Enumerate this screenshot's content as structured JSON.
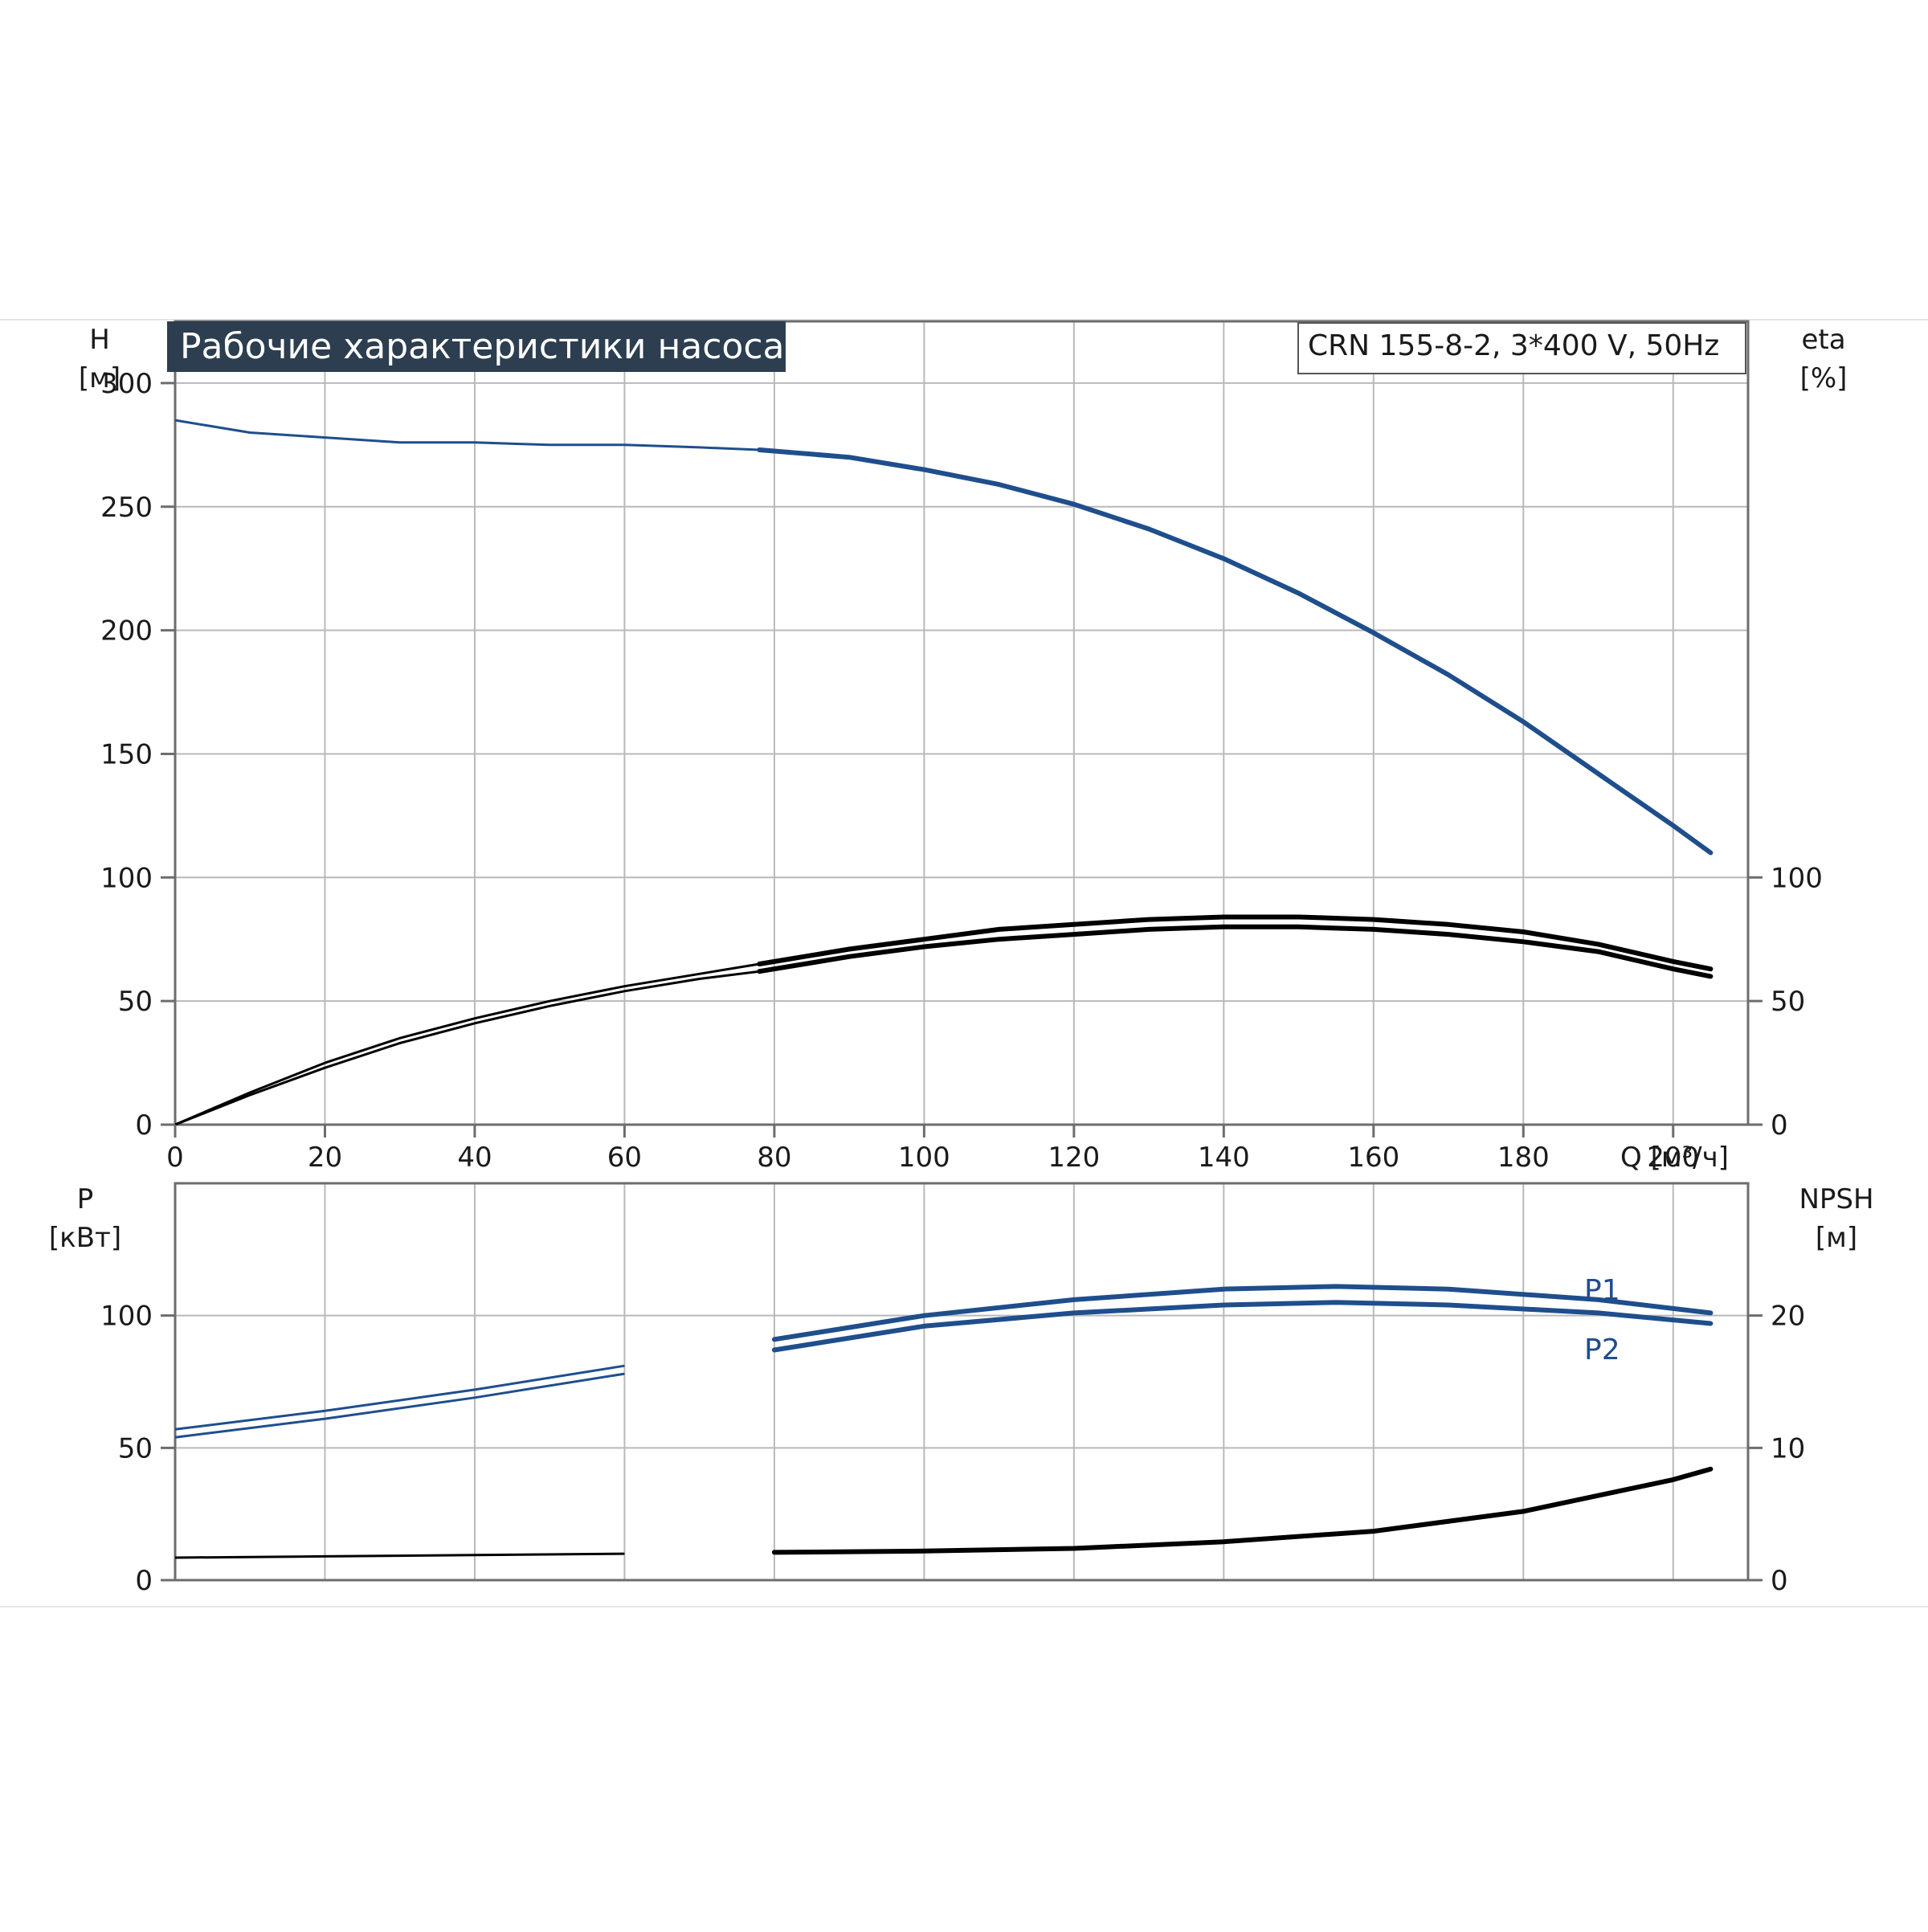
{
  "chart_data": [
    {
      "type": "line",
      "title": "Рабочие характеристики насоса",
      "subtitle": "CRN 155-8-2, 3*400 V, 50Hz",
      "x_axis": {
        "label": "Q [м³/ч]",
        "range": [
          0,
          210
        ],
        "ticks": [
          0,
          20,
          40,
          60,
          80,
          100,
          120,
          140,
          160,
          180,
          200
        ],
        "grid": true
      },
      "y_left": {
        "label": "H",
        "unit": "[м]",
        "range": [
          0,
          325
        ],
        "ticks": [
          0,
          50,
          100,
          150,
          200,
          250,
          300
        ]
      },
      "y_right": {
        "label": "eta",
        "unit": "[%]",
        "range": [
          0,
          325
        ],
        "ticks": [
          0,
          50,
          100
        ]
      },
      "grid": true,
      "series": [
        {
          "name": "",
          "axis": "left",
          "color": "#1f4e8c",
          "x": [
            0,
            10,
            20,
            30,
            40,
            50,
            60,
            70,
            78,
            90,
            100,
            110,
            120,
            130,
            140,
            150,
            160,
            170,
            180,
            190,
            200,
            205
          ],
          "y": [
            285,
            280,
            278,
            276,
            276,
            275,
            275,
            274,
            273,
            270,
            265,
            259,
            251,
            241,
            229,
            215,
            199,
            182,
            163,
            142,
            121,
            110
          ]
        },
        {
          "name": "",
          "axis": "right",
          "color": "#000000",
          "x": [
            0,
            10,
            20,
            30,
            40,
            50,
            60,
            70,
            78,
            90,
            100,
            110,
            120,
            130,
            140,
            150,
            160,
            170,
            180,
            190,
            200,
            205
          ],
          "y": [
            0,
            13,
            25,
            35,
            43,
            50,
            56,
            61,
            65,
            71,
            75,
            79,
            81,
            83,
            84,
            84,
            83,
            81,
            78,
            73,
            66,
            63
          ]
        },
        {
          "name": "",
          "axis": "right",
          "color": "#000000",
          "x": [
            0,
            10,
            20,
            30,
            40,
            50,
            60,
            70,
            78,
            90,
            100,
            110,
            120,
            130,
            140,
            150,
            160,
            170,
            180,
            190,
            200,
            205
          ],
          "y": [
            0,
            12,
            23,
            33,
            41,
            48,
            54,
            59,
            62,
            68,
            72,
            75,
            77,
            79,
            80,
            80,
            79,
            77,
            74,
            70,
            63,
            60
          ]
        }
      ]
    },
    {
      "type": "line",
      "x_axis": {
        "label": "Q [м³/ч]",
        "range": [
          0,
          210
        ],
        "ticks": [
          0,
          20,
          40,
          60,
          80,
          100,
          120,
          140,
          160,
          180,
          200
        ],
        "grid": true
      },
      "y_left": {
        "label": "P",
        "unit": "[кВт]",
        "range": [
          0,
          150
        ],
        "ticks": [
          0,
          50,
          100
        ]
      },
      "y_right": {
        "label": "NPSH",
        "unit": "[м]",
        "range": [
          0,
          30
        ],
        "ticks": [
          0,
          10,
          20
        ]
      },
      "grid": true,
      "series": [
        {
          "name": "P1",
          "axis": "left",
          "color": "#1f4e8c",
          "x": [
            0,
            20,
            40,
            60,
            80,
            100,
            120,
            140,
            155,
            170,
            190,
            205
          ],
          "y": [
            57,
            64,
            72,
            81,
            91,
            100,
            106,
            110,
            111,
            110,
            106,
            101
          ]
        },
        {
          "name": "P2",
          "axis": "left",
          "color": "#1f4e8c",
          "x": [
            0,
            20,
            40,
            60,
            80,
            100,
            120,
            140,
            155,
            170,
            190,
            205
          ],
          "y": [
            54,
            61,
            69,
            78,
            87,
            96,
            101,
            104,
            105,
            104,
            101,
            97
          ]
        },
        {
          "name": "",
          "axis": "right",
          "color": "#000000",
          "x": [
            0,
            20,
            40,
            60,
            80,
            100,
            120,
            140,
            160,
            180,
            200,
            205
          ],
          "y": [
            1.7,
            1.8,
            1.9,
            2.0,
            2.1,
            2.2,
            2.4,
            2.9,
            3.7,
            5.2,
            7.6,
            8.4
          ]
        }
      ]
    }
  ]
}
